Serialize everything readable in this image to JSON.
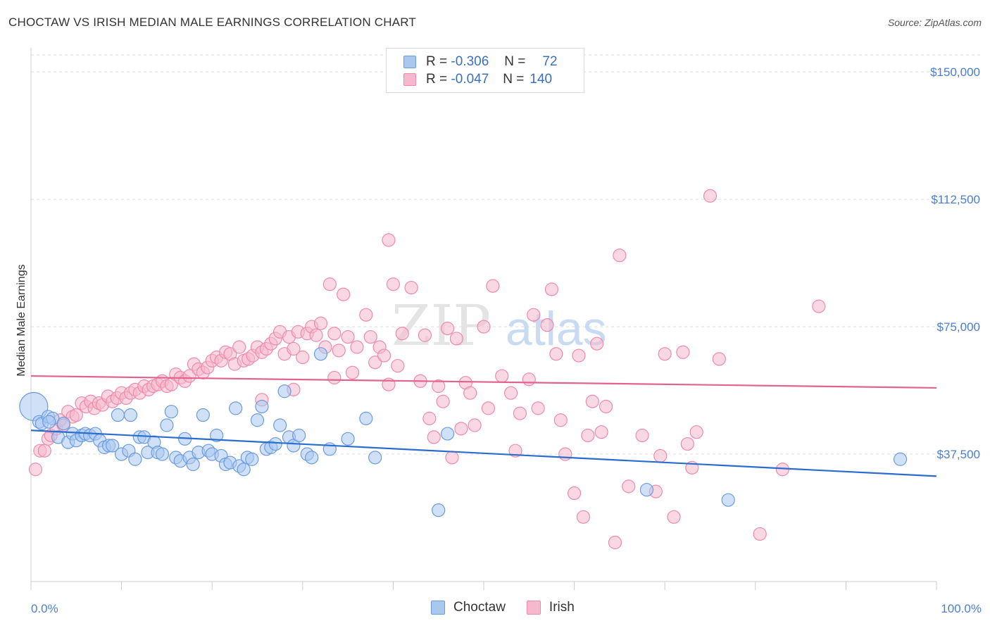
{
  "header": {
    "title": "CHOCTAW VS IRISH MEDIAN MALE EARNINGS CORRELATION CHART",
    "source": "Source: ZipAtlas.com"
  },
  "watermark": {
    "part1": "ZIP",
    "part2": "atlas"
  },
  "legend": {
    "choctaw": {
      "r_label": "R =",
      "r_value": "-0.306",
      "n_label": "N =",
      "n_value": "72"
    },
    "irish": {
      "r_label": "R =",
      "r_value": "-0.047",
      "n_label": "N =",
      "n_value": "140"
    }
  },
  "bottom_legend": {
    "choctaw": "Choctaw",
    "irish": "Irish"
  },
  "colors": {
    "choctaw_fill": "#a9c8f0",
    "choctaw_stroke": "#6a9be0",
    "choctaw_line": "#2a6dd0",
    "irish_fill": "#f6b8cc",
    "irish_stroke": "#ee8aaa",
    "irish_line": "#e2638e",
    "tick_text": "#4a7fd0",
    "grid": "#dddddd"
  },
  "chart_data": {
    "type": "scatter",
    "title": "CHOCTAW VS IRISH MEDIAN MALE EARNINGS CORRELATION CHART",
    "xlabel": "",
    "ylabel": "Median Male Earnings",
    "xlim": [
      0,
      100
    ],
    "ylim": [
      0,
      155000
    ],
    "x_tick_labels": [
      "0.0%",
      "100.0%"
    ],
    "y_ticks": [
      37500,
      75000,
      112500,
      150000
    ],
    "y_tick_labels": [
      "$37,500",
      "$75,000",
      "$112,500",
      "$150,000"
    ],
    "grid": true,
    "series": [
      {
        "name": "Choctaw",
        "trend": {
          "x": [
            0,
            100
          ],
          "y": [
            44500,
            31000
          ]
        },
        "points": [
          [
            0.3,
            51500
          ],
          [
            0.9,
            47000
          ],
          [
            1.2,
            46500
          ],
          [
            1.9,
            48500
          ],
          [
            2.4,
            48000
          ],
          [
            3.0,
            42500
          ],
          [
            3.6,
            46500
          ],
          [
            4.1,
            41000
          ],
          [
            4.6,
            43500
          ],
          [
            5.0,
            41500
          ],
          [
            5.6,
            43000
          ],
          [
            6.0,
            43500
          ],
          [
            6.5,
            43000
          ],
          [
            7.1,
            43500
          ],
          [
            7.6,
            41500
          ],
          [
            8.1,
            39500
          ],
          [
            8.6,
            40000
          ],
          [
            9.0,
            40000
          ],
          [
            9.6,
            49000
          ],
          [
            10.0,
            37500
          ],
          [
            10.8,
            38500
          ],
          [
            11.0,
            49000
          ],
          [
            11.5,
            36000
          ],
          [
            12.0,
            42500
          ],
          [
            12.5,
            42500
          ],
          [
            12.9,
            38000
          ],
          [
            13.6,
            41000
          ],
          [
            14.0,
            38000
          ],
          [
            14.5,
            37500
          ],
          [
            15.0,
            46000
          ],
          [
            15.5,
            50000
          ],
          [
            16.0,
            36500
          ],
          [
            16.5,
            35500
          ],
          [
            17.0,
            42000
          ],
          [
            17.5,
            36500
          ],
          [
            17.9,
            34500
          ],
          [
            18.5,
            38000
          ],
          [
            19.0,
            49000
          ],
          [
            19.6,
            38500
          ],
          [
            20.0,
            37500
          ],
          [
            20.5,
            43000
          ],
          [
            21.0,
            37000
          ],
          [
            21.5,
            34500
          ],
          [
            22.0,
            35000
          ],
          [
            22.6,
            51000
          ],
          [
            23.0,
            34000
          ],
          [
            23.5,
            33000
          ],
          [
            23.9,
            36500
          ],
          [
            24.4,
            36000
          ],
          [
            25.0,
            47500
          ],
          [
            25.5,
            51500
          ],
          [
            26.0,
            39000
          ],
          [
            26.5,
            39500
          ],
          [
            27.0,
            40500
          ],
          [
            27.5,
            46000
          ],
          [
            28.0,
            56000
          ],
          [
            28.5,
            42500
          ],
          [
            29.0,
            40000
          ],
          [
            29.6,
            43000
          ],
          [
            30.5,
            37500
          ],
          [
            31.0,
            36500
          ],
          [
            32.0,
            67000
          ],
          [
            33.0,
            39000
          ],
          [
            35.0,
            42000
          ],
          [
            37.0,
            48000
          ],
          [
            38.0,
            36500
          ],
          [
            45.0,
            21000
          ],
          [
            46.0,
            43500
          ],
          [
            68.0,
            27000
          ],
          [
            77.0,
            24000
          ],
          [
            96.0,
            36000
          ],
          [
            2.0,
            47000
          ]
        ]
      },
      {
        "name": "Irish",
        "trend": {
          "x": [
            0,
            100
          ],
          "y": [
            60500,
            57000
          ]
        },
        "points": [
          [
            0.5,
            33000
          ],
          [
            1.0,
            38500
          ],
          [
            1.5,
            38500
          ],
          [
            1.9,
            42000
          ],
          [
            2.2,
            43000
          ],
          [
            2.8,
            45000
          ],
          [
            3.2,
            47500
          ],
          [
            3.6,
            46000
          ],
          [
            4.1,
            50000
          ],
          [
            4.6,
            48500
          ],
          [
            5.0,
            49000
          ],
          [
            5.6,
            52500
          ],
          [
            6.1,
            51500
          ],
          [
            6.6,
            53000
          ],
          [
            7.0,
            51000
          ],
          [
            7.5,
            52500
          ],
          [
            7.9,
            52000
          ],
          [
            8.5,
            54500
          ],
          [
            9.0,
            53000
          ],
          [
            9.5,
            54000
          ],
          [
            10.0,
            55500
          ],
          [
            10.5,
            54000
          ],
          [
            11.0,
            55500
          ],
          [
            11.5,
            56500
          ],
          [
            12.0,
            55500
          ],
          [
            12.5,
            57500
          ],
          [
            13.0,
            56500
          ],
          [
            13.5,
            57500
          ],
          [
            14.0,
            58000
          ],
          [
            14.5,
            59000
          ],
          [
            15.0,
            57500
          ],
          [
            15.5,
            58000
          ],
          [
            16.0,
            61000
          ],
          [
            16.5,
            60000
          ],
          [
            17.0,
            59000
          ],
          [
            17.5,
            60500
          ],
          [
            18.0,
            64000
          ],
          [
            18.5,
            62500
          ],
          [
            19.0,
            61500
          ],
          [
            19.5,
            63000
          ],
          [
            20.0,
            65000
          ],
          [
            20.5,
            66000
          ],
          [
            21.0,
            65000
          ],
          [
            21.5,
            67500
          ],
          [
            22.0,
            67000
          ],
          [
            22.5,
            64000
          ],
          [
            23.0,
            69000
          ],
          [
            23.5,
            65000
          ],
          [
            24.0,
            65500
          ],
          [
            24.5,
            66500
          ],
          [
            25.0,
            69000
          ],
          [
            25.5,
            67500
          ],
          [
            26.0,
            68500
          ],
          [
            26.5,
            70000
          ],
          [
            27.0,
            71500
          ],
          [
            27.5,
            73500
          ],
          [
            28.0,
            67000
          ],
          [
            28.5,
            72000
          ],
          [
            29.0,
            68500
          ],
          [
            29.5,
            73500
          ],
          [
            30.0,
            66000
          ],
          [
            30.5,
            73000
          ],
          [
            31.0,
            75000
          ],
          [
            31.5,
            72500
          ],
          [
            32.0,
            76000
          ],
          [
            32.5,
            69000
          ],
          [
            33.0,
            87500
          ],
          [
            33.5,
            73000
          ],
          [
            34.0,
            68000
          ],
          [
            34.5,
            84500
          ],
          [
            35.0,
            72000
          ],
          [
            35.5,
            61500
          ],
          [
            36.0,
            69000
          ],
          [
            37.0,
            78500
          ],
          [
            37.5,
            72000
          ],
          [
            38.0,
            64500
          ],
          [
            38.5,
            69000
          ],
          [
            39.0,
            66500
          ],
          [
            39.5,
            58000
          ],
          [
            40.0,
            87500
          ],
          [
            40.5,
            63500
          ],
          [
            41.0,
            73000
          ],
          [
            42.0,
            86500
          ],
          [
            43.0,
            59000
          ],
          [
            43.5,
            72500
          ],
          [
            44.0,
            48000
          ],
          [
            44.5,
            42500
          ],
          [
            45.0,
            57500
          ],
          [
            45.5,
            53000
          ],
          [
            46.0,
            74500
          ],
          [
            46.5,
            36500
          ],
          [
            47.0,
            71500
          ],
          [
            47.5,
            45000
          ],
          [
            48.0,
            58500
          ],
          [
            48.5,
            55500
          ],
          [
            49.0,
            46000
          ],
          [
            50.0,
            75000
          ],
          [
            50.5,
            51000
          ],
          [
            51.0,
            87000
          ],
          [
            52.0,
            60500
          ],
          [
            53.0,
            55500
          ],
          [
            53.5,
            38500
          ],
          [
            54.0,
            49500
          ],
          [
            55.0,
            59500
          ],
          [
            55.5,
            78500
          ],
          [
            56.0,
            51000
          ],
          [
            57.0,
            75500
          ],
          [
            57.5,
            86000
          ],
          [
            58.0,
            67000
          ],
          [
            58.5,
            47500
          ],
          [
            59.0,
            37500
          ],
          [
            60.0,
            26000
          ],
          [
            60.5,
            66500
          ],
          [
            61.0,
            19000
          ],
          [
            61.5,
            43000
          ],
          [
            62.0,
            53000
          ],
          [
            62.5,
            70000
          ],
          [
            63.0,
            44000
          ],
          [
            63.5,
            51500
          ],
          [
            65.0,
            96000
          ],
          [
            66.0,
            28000
          ],
          [
            67.5,
            43000
          ],
          [
            69.0,
            26500
          ],
          [
            69.5,
            37000
          ],
          [
            70.0,
            67000
          ],
          [
            71.0,
            19000
          ],
          [
            72.0,
            67500
          ],
          [
            72.5,
            40500
          ],
          [
            73.0,
            33500
          ],
          [
            75.0,
            113500
          ],
          [
            76.0,
            65500
          ],
          [
            80.5,
            14000
          ],
          [
            83.0,
            33000
          ],
          [
            87.0,
            81000
          ],
          [
            64.5,
            11500
          ],
          [
            73.5,
            44000
          ],
          [
            25.5,
            53500
          ],
          [
            29.0,
            56500
          ],
          [
            33.5,
            60000
          ],
          [
            39.5,
            100500
          ]
        ]
      }
    ]
  }
}
